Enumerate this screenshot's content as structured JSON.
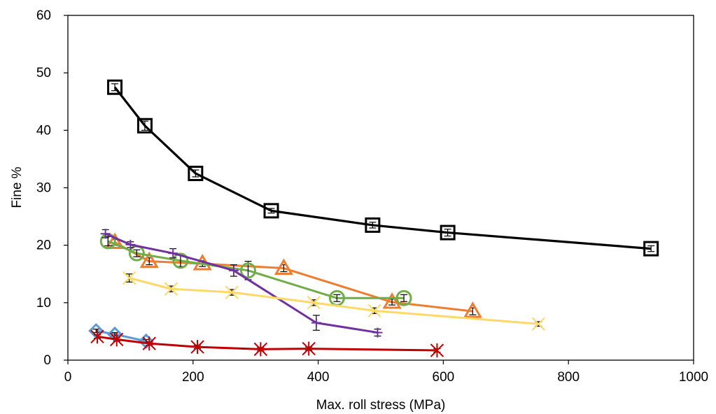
{
  "chart_data": {
    "type": "scatter",
    "xlabel": "Max. roll stress (MPa)",
    "ylabel": "Fine %",
    "xlim": [
      0,
      1000
    ],
    "ylim": [
      0,
      60
    ],
    "xticks": [
      0,
      200,
      400,
      600,
      800,
      1000
    ],
    "yticks": [
      0,
      10,
      20,
      30,
      40,
      50,
      60
    ],
    "grid": false,
    "series": [
      {
        "marker": "square",
        "color": "#000000",
        "x": [
          75,
          123,
          204,
          325,
          487,
          607,
          932
        ],
        "y": [
          47.5,
          40.8,
          32.5,
          26.0,
          23.5,
          22.2,
          19.4
        ],
        "err": [
          0.6,
          0.8,
          0.6,
          0.4,
          0.5,
          0.6,
          0.5
        ]
      },
      {
        "marker": "triangle",
        "color": "#ED7D31",
        "x": [
          75,
          130,
          215,
          345,
          518,
          647
        ],
        "y": [
          20.5,
          17.2,
          16.8,
          16.0,
          10.1,
          8.5
        ],
        "err": [
          0.5,
          0.6,
          0.5,
          0.6,
          0.5,
          0.6
        ]
      },
      {
        "marker": "circle",
        "color": "#70AD47",
        "x": [
          64,
          110,
          180,
          288,
          430,
          537
        ],
        "y": [
          20.7,
          18.6,
          17.3,
          15.6,
          10.8,
          10.8
        ],
        "err": [
          0.8,
          0.6,
          1.0,
          1.6,
          0.6,
          0.6
        ]
      },
      {
        "marker": "plus",
        "color": "#7030A0",
        "x": [
          60,
          100,
          168,
          265,
          397,
          495
        ],
        "y": [
          22.0,
          20.1,
          18.6,
          15.6,
          6.5,
          4.8
        ],
        "err": [
          0.7,
          0.5,
          0.8,
          1.0,
          1.3,
          0.6
        ]
      },
      {
        "marker": "x",
        "color": "#FFD966",
        "x": [
          98,
          165,
          262,
          393,
          490,
          752
        ],
        "y": [
          14.3,
          12.4,
          11.8,
          10.0,
          8.6,
          6.3
        ],
        "err": [
          0.7,
          0.5,
          0.5,
          0.5,
          0.5,
          0.4
        ]
      },
      {
        "marker": "diamond",
        "color": "#5B9BD5",
        "x": [
          45,
          75,
          125
        ],
        "y": [
          5.1,
          4.5,
          3.3
        ],
        "err": [
          0.3,
          0.3,
          0.3
        ]
      },
      {
        "marker": "asterisk",
        "color": "#C00000",
        "x": [
          47,
          78,
          130,
          207,
          308,
          385,
          590
        ],
        "y": [
          4.1,
          3.6,
          2.9,
          2.3,
          1.9,
          2.0,
          1.7
        ],
        "err": [
          0.3,
          0.3,
          0.3,
          0.3,
          0.3,
          0.3,
          0.3
        ]
      }
    ]
  }
}
